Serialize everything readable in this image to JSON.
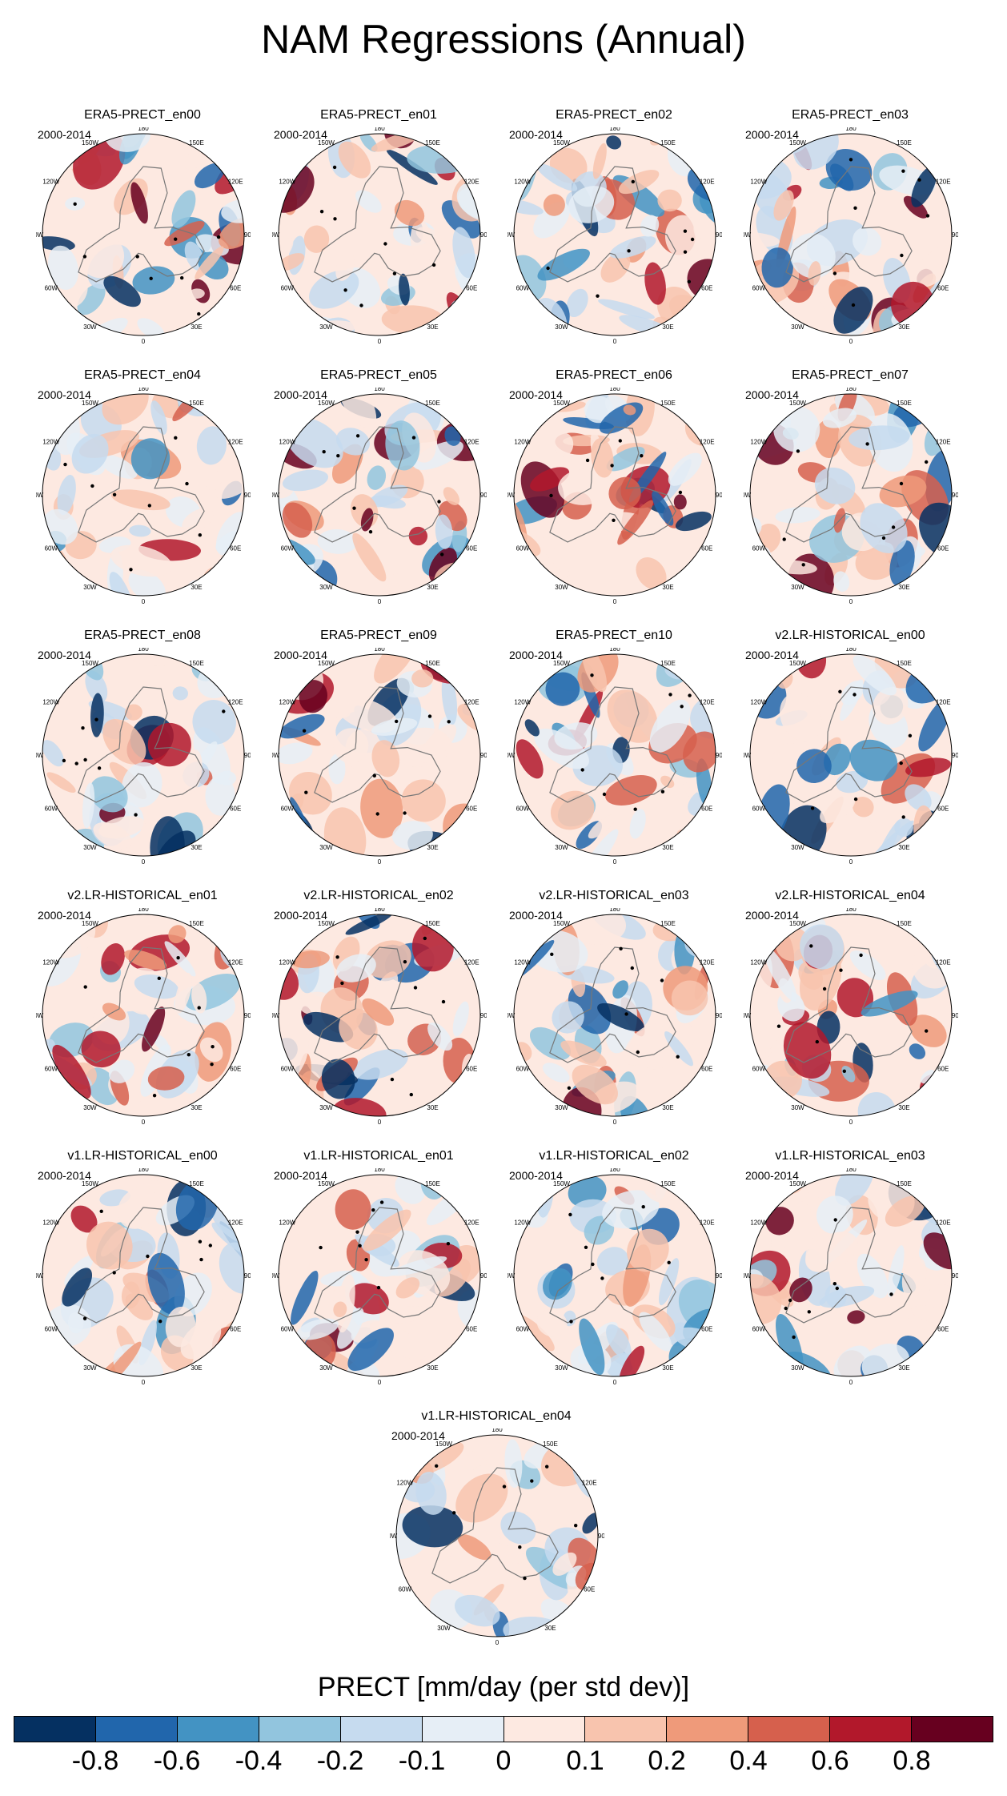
{
  "title": "NAM Regressions (Annual)",
  "period_label": "2000-2014",
  "longitude_labels": [
    "180",
    "150E",
    "120E",
    "90E",
    "60E",
    "30E",
    "0",
    "30W",
    "60W",
    "90W",
    "120W",
    "150W"
  ],
  "panels": [
    {
      "title": "ERA5-PRECT_en00"
    },
    {
      "title": "ERA5-PRECT_en01"
    },
    {
      "title": "ERA5-PRECT_en02"
    },
    {
      "title": "ERA5-PRECT_en03"
    },
    {
      "title": "ERA5-PRECT_en04"
    },
    {
      "title": "ERA5-PRECT_en05"
    },
    {
      "title": "ERA5-PRECT_en06"
    },
    {
      "title": "ERA5-PRECT_en07"
    },
    {
      "title": "ERA5-PRECT_en08"
    },
    {
      "title": "ERA5-PRECT_en09"
    },
    {
      "title": "ERA5-PRECT_en10"
    },
    {
      "title": "v2.LR-HISTORICAL_en00"
    },
    {
      "title": "v2.LR-HISTORICAL_en01"
    },
    {
      "title": "v2.LR-HISTORICAL_en02"
    },
    {
      "title": "v2.LR-HISTORICAL_en03"
    },
    {
      "title": "v2.LR-HISTORICAL_en04"
    },
    {
      "title": "v1.LR-HISTORICAL_en00"
    },
    {
      "title": "v1.LR-HISTORICAL_en01"
    },
    {
      "title": "v1.LR-HISTORICAL_en02"
    },
    {
      "title": "v1.LR-HISTORICAL_en03"
    },
    {
      "title": "v1.LR-HISTORICAL_en04"
    }
  ],
  "colorbar": {
    "label": "PRECT [mm/day (per std dev)]",
    "colors": [
      "#053061",
      "#2166ac",
      "#4393c3",
      "#92c5de",
      "#c6dbef",
      "#e6eef6",
      "#fde9e1",
      "#f8c4ae",
      "#ef9a7a",
      "#d6604d",
      "#b2182b",
      "#67001f"
    ],
    "ticks": [
      "-0.8",
      "-0.6",
      "-0.4",
      "-0.2",
      "-0.1",
      "0",
      "0.1",
      "0.2",
      "0.4",
      "0.6",
      "0.8"
    ]
  }
}
